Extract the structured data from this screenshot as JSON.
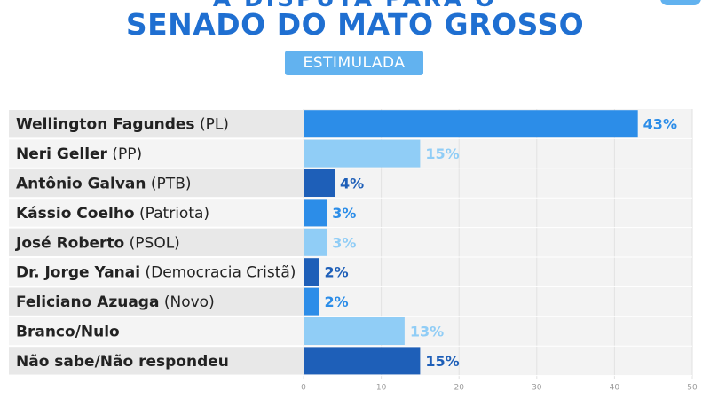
{
  "header": {
    "title_top": "A DISPUTA PARA O",
    "title_main": "SENADO DO MATO GROSSO",
    "badge": "ESTIMULADA"
  },
  "colors": {
    "title": "#1f6fd1",
    "badge_bg": "#62b2ef",
    "bar_dark": "#1e5fb8",
    "bar_mid": "#2c8de8",
    "bar_light": "#90cdf6",
    "row_bg_a": "#e8e8e8",
    "row_bg_b": "#f4f4f4",
    "plot_bg": "#f3f3f3"
  },
  "chart_data": {
    "type": "bar",
    "orientation": "horizontal",
    "xlim": [
      0,
      50
    ],
    "x_ticks": [
      0,
      10,
      20,
      30,
      40,
      50
    ],
    "bars": [
      {
        "name": "Wellington Fagundes",
        "party": "(PL)",
        "value": 43,
        "value_label": "43%",
        "shade": "mid"
      },
      {
        "name": "Neri Geller",
        "party": "(PP)",
        "value": 15,
        "value_label": "15%",
        "shade": "light"
      },
      {
        "name": "Antônio Galvan",
        "party": "(PTB)",
        "value": 4,
        "value_label": "4%",
        "shade": "dark"
      },
      {
        "name": "Kássio Coelho",
        "party": "(Patriota)",
        "value": 3,
        "value_label": "3%",
        "shade": "mid"
      },
      {
        "name": "José Roberto",
        "party": "(PSOL)",
        "value": 3,
        "value_label": "3%",
        "shade": "light"
      },
      {
        "name": "Dr. Jorge Yanai",
        "party": "(Democracia Cristã)",
        "value": 2,
        "value_label": "2%",
        "shade": "dark"
      },
      {
        "name": "Feliciano Azuaga",
        "party": "(Novo)",
        "value": 2,
        "value_label": "2%",
        "shade": "mid"
      },
      {
        "name": "Branco/Nulo",
        "party": "",
        "value": 13,
        "value_label": "13%",
        "shade": "light"
      },
      {
        "name": "Não sabe/Não respondeu",
        "party": "",
        "value": 15,
        "value_label": "15%",
        "shade": "dark"
      }
    ]
  }
}
